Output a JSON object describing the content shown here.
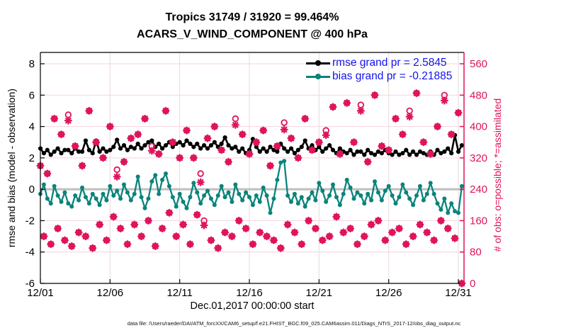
{
  "footer": {
    "data_file": "data file: /Users/raeder/DAI/ATM_forcXX/CAM6_setup/f.e21.FHIST_BGC.f09_025.CAM6assim.011/Diags_NTrS_2017-12/obs_diag_output.nc"
  },
  "colors": {
    "rmse": "#000000",
    "bias": "#0b837b",
    "obs": "#de145c",
    "legend_text": "#1414ee",
    "grid_h": "#f6d3dc",
    "grid_v": "#e7dadd",
    "zero_line": "#bfbfbf",
    "axis_black": "#000000"
  },
  "chart_data": {
    "type": "line",
    "title": "Tropics 31749 / 31920 = 99.464%",
    "subtitle": "ACARS_V_WIND_COMPONENT @ 400 hPa",
    "xlabel": "Dec.01,2017 00:00:00 start",
    "ylabel_left": "rmse and bias (model - observation)",
    "ylabel_right": "# of obs: o=possible; *=assimilated",
    "x_tick_days": [
      0,
      5,
      10,
      15,
      20,
      25,
      30
    ],
    "x_tick_labels": [
      "12/01",
      "12/06",
      "12/11",
      "12/16",
      "12/21",
      "12/26",
      "12/31"
    ],
    "y_left_tick_values": [
      8,
      6,
      4,
      2,
      0,
      -2,
      -4,
      -6
    ],
    "y_left_tick_labels": [
      "8",
      "6",
      "4",
      "2",
      "0",
      "-2",
      "-4",
      "-6"
    ],
    "y_right_tick_values": [
      560,
      480,
      400,
      320,
      240,
      160,
      80,
      0
    ],
    "y_right_tick_labels": [
      "560",
      "480",
      "400",
      "320",
      "240",
      "160",
      "80",
      "0"
    ],
    "ylim_left": [
      -6,
      8.7
    ],
    "ylim_right": [
      0,
      588
    ],
    "xlim_days": [
      0,
      30.4
    ],
    "x_step_days": 0.25,
    "grid": true,
    "legend_position": "top-right-inside",
    "legend": [
      {
        "label": "rmse grand pr = 2.5845",
        "color": "#000000"
      },
      {
        "label": "bias grand pr = -0.21885",
        "color": "#0b837b"
      }
    ],
    "series": [
      {
        "name": "rmse",
        "axis": "left",
        "color": "#000000",
        "marker": "filled-circle",
        "values": [
          2.6,
          2.3,
          2.5,
          2.2,
          2.4,
          2.6,
          2.3,
          2.5,
          2.5,
          2.3,
          2.6,
          2.4,
          2.4,
          3.1,
          2.5,
          2.3,
          3.1,
          2.4,
          2.6,
          2.4,
          2.5,
          2.7,
          3.15,
          2.6,
          2.8,
          2.5,
          2.7,
          2.6,
          2.9,
          2.6,
          2.8,
          3.0,
          3.1,
          2.7,
          2.9,
          2.6,
          2.8,
          3.0,
          2.7,
          2.9,
          3.0,
          2.8,
          3.1,
          2.9,
          2.7,
          2.9,
          2.6,
          2.8,
          2.6,
          2.8,
          3.0,
          2.7,
          2.9,
          3.3,
          2.8,
          2.6,
          2.7,
          2.4,
          2.6,
          2.3,
          2.5,
          3.2,
          2.7,
          2.4,
          2.6,
          2.4,
          2.7,
          2.5,
          2.4,
          2.9,
          2.6,
          2.4,
          2.6,
          2.3,
          2.5,
          2.7,
          3.1,
          2.6,
          2.8,
          2.5,
          2.7,
          2.4,
          2.6,
          2.8,
          2.5,
          2.3,
          2.6,
          2.4,
          2.3,
          2.5,
          2.2,
          2.4,
          2.4,
          2.2,
          2.5,
          2.3,
          2.2,
          2.4,
          2.3,
          2.5,
          2.3,
          2.2,
          2.4,
          2.2,
          2.3,
          2.5,
          2.2,
          2.4,
          2.2,
          2.4,
          2.3,
          2.2,
          2.4,
          2.2,
          2.5,
          2.3,
          2.4,
          2.6,
          2.3,
          3.45,
          2.4,
          2.8
        ]
      },
      {
        "name": "bias",
        "axis": "left",
        "color": "#0b837b",
        "marker": "filled-circle",
        "values": [
          -0.3,
          0.3,
          -0.6,
          -0.9,
          0.2,
          -0.4,
          -0.8,
          -0.2,
          -0.9,
          -1.1,
          -0.4,
          -0.7,
          0.1,
          -0.5,
          -0.9,
          -0.3,
          -0.6,
          -1.0,
          -0.3,
          -0.7,
          0.2,
          -0.4,
          -0.1,
          -0.6,
          0.3,
          -0.2,
          -0.7,
          -0.3,
          0.8,
          -0.5,
          -1.2,
          -0.6,
          0.5,
          0.9,
          -0.3,
          0.6,
          1.0,
          0.2,
          -0.5,
          -1.1,
          -0.3,
          -0.8,
          -1.2,
          -0.5,
          0.4,
          -0.2,
          -0.9,
          -0.4,
          -0.1,
          -0.6,
          -1.0,
          -0.4,
          0.2,
          -0.5,
          -0.2,
          -0.8,
          0.3,
          -0.3,
          -0.7,
          -0.2,
          -0.5,
          -1.0,
          -0.4,
          -0.8,
          0.1,
          -0.4,
          -1.5,
          -0.6,
          0.6,
          1.7,
          1.8,
          -0.4,
          -0.8,
          -0.3,
          -0.9,
          -0.5,
          -1.1,
          -0.6,
          -0.2,
          -0.7,
          0.4,
          -0.1,
          -0.8,
          -0.4,
          0.3,
          -0.5,
          -1.0,
          -0.3,
          0.6,
          0.1,
          -0.6,
          -0.2,
          -0.4,
          -0.9,
          -0.3,
          -0.7,
          0.5,
          -0.2,
          -0.7,
          -0.1,
          0.2,
          -0.4,
          -0.9,
          -0.5,
          0.3,
          -0.2,
          -0.6,
          -1.0,
          -0.4,
          0.2,
          -0.7,
          -0.3,
          0.4,
          -0.3,
          -0.9,
          -1.3,
          -0.6,
          -1.5,
          -0.9,
          -1.4,
          -1.5,
          0.2
        ]
      },
      {
        "name": "possible",
        "axis": "right",
        "color": "#de145c",
        "marker": "open-circle",
        "values": [
          300,
          120,
          280,
          100,
          420,
          140,
          380,
          110,
          430,
          95,
          350,
          130,
          300,
          120,
          440,
          90,
          360,
          150,
          320,
          110,
          400,
          170,
          290,
          140,
          310,
          100,
          370,
          150,
          380,
          120,
          420,
          160,
          350,
          95,
          330,
          140,
          440,
          180,
          360,
          120,
          320,
          150,
          390,
          100,
          320,
          175,
          280,
          160,
          370,
          110,
          400,
          90,
          340,
          130,
          310,
          120,
          420,
          160,
          380,
          140,
          330,
          100,
          360,
          130,
          390,
          120,
          300,
          110,
          350,
          90,
          410,
          150,
          370,
          130,
          320,
          100,
          420,
          160,
          340,
          140,
          360,
          110,
          390,
          120,
          450,
          170,
          330,
          130,
          460,
          140,
          360,
          100,
          455,
          120,
          310,
          150,
          480,
          160,
          350,
          110,
          340,
          130,
          420,
          140,
          380,
          100,
          440,
          120,
          485,
          150,
          360,
          130,
          330,
          110,
          400,
          160,
          480,
          140,
          380,
          115,
          435,
          0
        ]
      },
      {
        "name": "assimilated",
        "axis": "right",
        "color": "#de145c",
        "marker": "asterisk",
        "values": [
          300,
          120,
          280,
          100,
          420,
          140,
          380,
          110,
          415,
          95,
          350,
          130,
          300,
          120,
          440,
          90,
          360,
          150,
          320,
          110,
          400,
          170,
          272,
          140,
          310,
          100,
          370,
          150,
          380,
          120,
          420,
          160,
          338,
          95,
          330,
          140,
          440,
          180,
          360,
          120,
          320,
          150,
          390,
          100,
          320,
          175,
          258,
          148,
          370,
          110,
          400,
          90,
          340,
          130,
          310,
          120,
          404,
          160,
          380,
          140,
          330,
          100,
          360,
          130,
          390,
          120,
          300,
          110,
          350,
          90,
          392,
          150,
          370,
          130,
          320,
          100,
          420,
          160,
          340,
          140,
          360,
          110,
          378,
          120,
          450,
          170,
          330,
          130,
          460,
          140,
          360,
          100,
          440,
          120,
          310,
          150,
          480,
          160,
          350,
          110,
          340,
          130,
          420,
          140,
          380,
          100,
          425,
          120,
          485,
          150,
          360,
          130,
          330,
          110,
          400,
          160,
          466,
          140,
          380,
          115,
          435,
          0
        ]
      }
    ]
  }
}
